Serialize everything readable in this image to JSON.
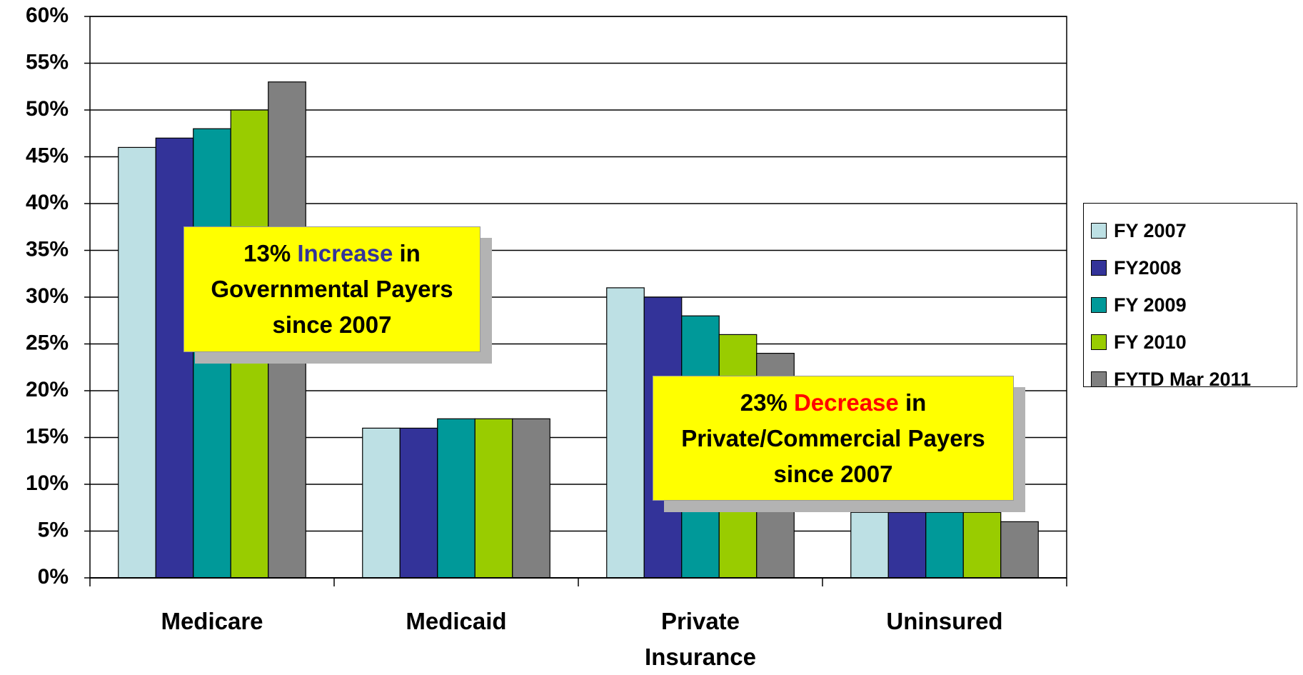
{
  "chart_data": {
    "type": "bar",
    "categories": [
      "Medicare",
      "Medicaid",
      "Private Insurance",
      "Uninsured"
    ],
    "series": [
      {
        "name": "FY 2007",
        "color": "#bde0e4",
        "values": [
          46,
          16,
          31,
          7
        ]
      },
      {
        "name": "FY2008",
        "color": "#333399",
        "values": [
          47,
          16,
          30,
          7
        ]
      },
      {
        "name": "FY 2009",
        "color": "#009999",
        "values": [
          48,
          17,
          28,
          7
        ]
      },
      {
        "name": "FY 2010",
        "color": "#99cc00",
        "values": [
          50,
          17,
          26,
          7
        ]
      },
      {
        "name": "FYTD Mar 2011",
        "color": "#808080",
        "values": [
          53,
          17,
          24,
          6
        ]
      }
    ],
    "ylim": [
      0,
      60
    ],
    "yticks": [
      {
        "value": 0,
        "label": "0%"
      },
      {
        "value": 5,
        "label": "5%"
      },
      {
        "value": 10,
        "label": "10%"
      },
      {
        "value": 15,
        "label": "15%"
      },
      {
        "value": 20,
        "label": "20%"
      },
      {
        "value": 25,
        "label": "25%"
      },
      {
        "value": 30,
        "label": "30%"
      },
      {
        "value": 35,
        "label": "35%"
      },
      {
        "value": 40,
        "label": "40%"
      },
      {
        "value": 45,
        "label": "45%"
      },
      {
        "value": 50,
        "label": "50%"
      },
      {
        "value": 55,
        "label": "55%"
      },
      {
        "value": 60,
        "label": "60%"
      }
    ],
    "grid": true,
    "legend": "right",
    "annotations": [
      {
        "before": "13%",
        "highlight": "Increase",
        "after": "in Governmental Payers since 2007",
        "highlight_color": "#333399"
      },
      {
        "before": "23%",
        "highlight": "Decrease",
        "after": "in Private/Commercial Payers since 2007",
        "highlight_color": "#ff0000"
      }
    ]
  }
}
